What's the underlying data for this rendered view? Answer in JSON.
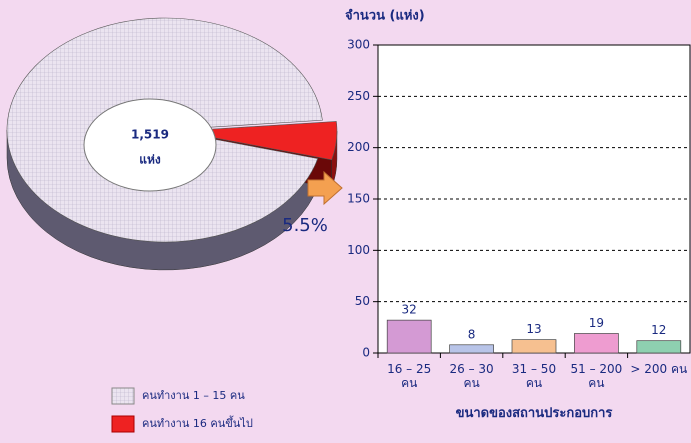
{
  "chart_data": [
    {
      "type": "pie",
      "categories": [
        "คนทำงาน 1 – 15 คน",
        "คนทำงาน 16 คนขึ้นไป"
      ],
      "values": [
        94.5,
        5.5
      ],
      "value_labels": [
        null,
        "5.5%"
      ],
      "colors": [
        "#e4dcec",
        "#ee2222"
      ],
      "center_text": "1,519",
      "center_unit": "แห่ง"
    },
    {
      "type": "bar",
      "y_axis_label": "จำนวน (แห่ง)",
      "x_axis_label": "ขนาดของสถานประกอบการ",
      "categories": [
        "16 – 25 คน",
        "26 – 30 คน",
        "31 – 50 คน",
        "51 – 200 คน",
        "> 200 คน"
      ],
      "values": [
        32,
        8,
        13,
        19,
        12
      ],
      "colors": [
        "#d49ad4",
        "#b8c4e8",
        "#f6c090",
        "#ee9cd0",
        "#8ed0b0"
      ],
      "ylim": [
        0,
        300
      ],
      "yticks": [
        0,
        50,
        100,
        150,
        200,
        250,
        300
      ],
      "grid": true
    }
  ]
}
